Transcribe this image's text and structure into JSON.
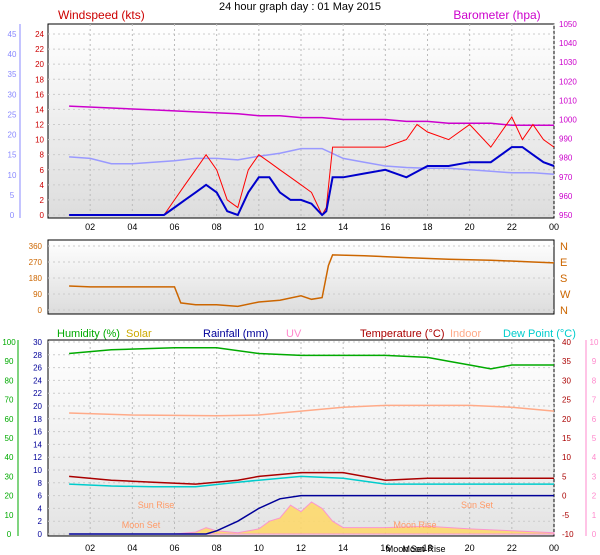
{
  "title": "24 hour graph day : 01 May 2015",
  "colors": {
    "windspeed": "#ff0000",
    "gust_avg": "#0000cc",
    "barometer": "#cc00cc",
    "temp_chart_line": "#9999ff",
    "direction": "#cc6600",
    "humidity": "#00aa00",
    "solar": "#ccaa00",
    "rainfall": "#000099",
    "uv": "#ff88cc",
    "temperature": "#aa0000",
    "indoor": "#ffaa88",
    "dewpoint": "#00cccc",
    "left_axis_blue": "#8888ff"
  },
  "x_ticks": [
    "02",
    "04",
    "06",
    "08",
    "10",
    "12",
    "14",
    "16",
    "18",
    "20",
    "22",
    "00"
  ],
  "chart_data": [
    {
      "type": "line",
      "name": "wind-barometer-chart",
      "legend_left": "Windspeed (kts)",
      "legend_right": "Barometer (hpa)",
      "y_left_outer_ticks": [
        "0",
        "5",
        "10",
        "15",
        "20",
        "25",
        "30",
        "35",
        "40",
        "45"
      ],
      "y_left_inner_ticks": [
        "0",
        "2",
        "4",
        "6",
        "8",
        "10",
        "12",
        "14",
        "16",
        "18",
        "20",
        "22",
        "24"
      ],
      "y_left_inner_range": [
        0,
        25
      ],
      "y_right_ticks": [
        "950",
        "960",
        "970",
        "980",
        "990",
        "1000",
        "1010",
        "1020",
        "1030",
        "1040",
        "1050"
      ],
      "y_right_range": [
        950,
        1050
      ],
      "x_range": [
        1,
        24
      ],
      "series": {
        "windspeed_kts": {
          "x": [
            1,
            5.5,
            6,
            6.5,
            7,
            7.5,
            8,
            8.5,
            9,
            9.5,
            10,
            10.5,
            11,
            11.5,
            12,
            12.5,
            13,
            13.2,
            13.5,
            14,
            15,
            16,
            17,
            17.5,
            18,
            19,
            20,
            21,
            21.5,
            22,
            22.5,
            23,
            23.5,
            24
          ],
          "y": [
            0,
            0,
            2,
            4,
            6,
            8,
            6,
            2,
            1,
            6,
            8,
            7,
            6,
            5,
            4,
            3,
            0,
            1,
            9,
            9,
            9,
            9,
            10,
            12,
            11,
            10,
            12,
            9,
            11,
            13,
            10,
            12,
            10,
            9
          ]
        },
        "gust_avg_kts": {
          "x": [
            1,
            5.5,
            6,
            6.5,
            7,
            7.5,
            8,
            8.5,
            9,
            9.5,
            10,
            10.5,
            11,
            11.5,
            12,
            12.5,
            13,
            13.2,
            13.5,
            14,
            15,
            16,
            17,
            18,
            19,
            20,
            21,
            21.5,
            22,
            22.5,
            23,
            23.5,
            24
          ],
          "y": [
            0,
            0,
            1,
            2,
            3,
            4,
            3,
            0.5,
            0,
            3,
            5,
            5,
            3,
            2,
            2,
            1.5,
            0,
            0.5,
            5,
            5,
            5.5,
            6,
            5,
            6.5,
            6.5,
            7,
            7,
            8,
            9,
            9,
            8,
            7,
            6.5
          ]
        },
        "barometer_hpa": {
          "x": [
            1,
            3,
            5,
            7,
            9,
            10,
            11,
            12,
            13,
            14,
            15,
            16,
            17,
            18,
            19,
            20,
            21,
            22,
            23,
            24
          ],
          "y": [
            1007,
            1006,
            1005,
            1004,
            1003,
            1002,
            1002,
            1001,
            1001,
            1000,
            1000,
            1000,
            999,
            999,
            998,
            998,
            998,
            997,
            997,
            997
          ]
        },
        "temp_trace": {
          "x": [
            1,
            2,
            3,
            4,
            5,
            6,
            7,
            8,
            9,
            10,
            11,
            12,
            13,
            14,
            15,
            16,
            17,
            18,
            19,
            20,
            21,
            22,
            23,
            24
          ],
          "y": [
            7.7,
            7.5,
            6.8,
            6.8,
            7.0,
            7.2,
            7.5,
            7.5,
            7.3,
            7.8,
            8.2,
            8.8,
            8.8,
            7.5,
            7.0,
            6.5,
            6.3,
            6.2,
            6.2,
            6.0,
            5.8,
            5.6,
            5.6,
            5.4
          ]
        }
      }
    },
    {
      "type": "line",
      "name": "wind-direction-chart",
      "y_ticks": [
        "0",
        "90",
        "180",
        "270",
        "360"
      ],
      "y_range": [
        0,
        360
      ],
      "compass": [
        "N",
        "W",
        "S",
        "E",
        "N"
      ],
      "series": {
        "direction_deg": {
          "x": [
            1,
            2,
            3,
            4,
            5,
            6,
            6.3,
            7,
            8,
            9,
            10,
            11,
            12,
            12.5,
            13,
            13.3,
            13.5,
            15,
            17,
            19,
            21,
            23,
            24
          ],
          "y": [
            135,
            130,
            130,
            130,
            130,
            130,
            40,
            30,
            30,
            20,
            45,
            55,
            80,
            60,
            70,
            250,
            310,
            305,
            295,
            285,
            280,
            270,
            265
          ]
        }
      }
    },
    {
      "type": "line",
      "name": "humidity-temperature-chart",
      "legends": [
        "Humidity (%)",
        "Solar",
        "Rainfall (mm)",
        "UV",
        "Temperature (°C)",
        "Indoor",
        "Dew Point (°C)"
      ],
      "y_left_outer_ticks": [
        "0",
        "10",
        "20",
        "30",
        "40",
        "50",
        "60",
        "70",
        "80",
        "90",
        "100"
      ],
      "y_left_inner_ticks": [
        "0",
        "2",
        "4",
        "6",
        "8",
        "10",
        "12",
        "14",
        "16",
        "18",
        "20",
        "22",
        "24",
        "26",
        "28",
        "30"
      ],
      "y_right_inner_ticks": [
        "-10",
        "-5",
        "0",
        "5",
        "10",
        "15",
        "20",
        "25",
        "30",
        "35",
        "40"
      ],
      "y_right_outer_ticks": [
        "0",
        "1",
        "2",
        "3",
        "4",
        "5",
        "6",
        "7",
        "8",
        "9",
        "10"
      ],
      "annotations": [
        "Sun Rise",
        "Moon Set",
        "Moon Rise",
        "Sun Set",
        "Moon Set",
        "Moon Rise"
      ],
      "series": {
        "humidity_pct": {
          "x": [
            1,
            3,
            6,
            8,
            10,
            12,
            14,
            16,
            18,
            19,
            20,
            21,
            22,
            24
          ],
          "y": [
            94,
            96,
            97,
            97,
            94,
            93,
            93,
            93,
            92,
            90,
            88,
            86,
            88,
            88
          ]
        },
        "indoor_c": {
          "x": [
            1,
            4,
            8,
            10,
            12,
            14,
            16,
            18,
            20,
            22,
            24
          ],
          "y": [
            21.5,
            21,
            20.8,
            21,
            22,
            23,
            23.5,
            23.5,
            23.5,
            23,
            22
          ]
        },
        "temperature_c": {
          "x": [
            1,
            3,
            5,
            7,
            9,
            10,
            12,
            14,
            16,
            18,
            20,
            22,
            24
          ],
          "y": [
            5,
            4,
            3.5,
            3,
            4,
            5,
            6,
            6,
            4,
            4.5,
            4.5,
            4.5,
            4.5
          ]
        },
        "dewpoint_c": {
          "x": [
            1,
            3,
            5,
            7,
            9,
            10,
            12,
            14,
            16,
            18,
            20,
            22,
            24
          ],
          "y": [
            3,
            2.5,
            2.3,
            2.3,
            3.5,
            4,
            5,
            4.5,
            3,
            3,
            3,
            3,
            3
          ]
        },
        "rainfall_mm": {
          "x": [
            1,
            7.5,
            8,
            9,
            10,
            11,
            12,
            13,
            14,
            18,
            24
          ],
          "y": [
            0,
            0,
            0.5,
            2,
            4,
            5.5,
            6,
            6,
            6,
            6,
            6
          ]
        },
        "solar_fill": {
          "x": [
            1,
            6,
            7,
            7.5,
            8,
            9,
            10,
            10.5,
            11,
            11.5,
            12,
            12.5,
            13,
            13.5,
            14,
            16,
            18,
            20,
            22,
            24
          ],
          "y": [
            0,
            0,
            0.3,
            1,
            0.5,
            0.2,
            0.8,
            2,
            2.5,
            4.5,
            3.5,
            5,
            4,
            2,
            1,
            1,
            1.2,
            0.8,
            0.5,
            0.2
          ]
        }
      }
    }
  ]
}
